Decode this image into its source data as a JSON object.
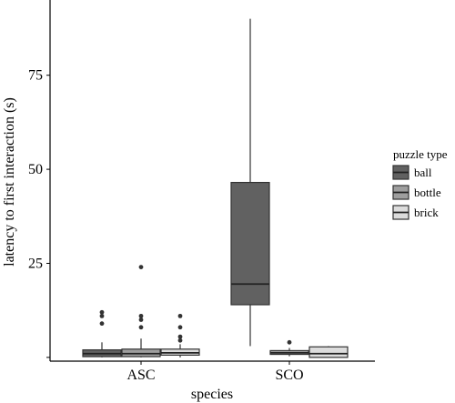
{
  "chart_data": {
    "type": "box",
    "xlabel": "species",
    "ylabel": "latency to first interaction (s)",
    "categories": [
      "ASC",
      "SCO"
    ],
    "ylim": [
      -1,
      95
    ],
    "yticks": [
      25,
      50,
      75
    ],
    "grid": false,
    "legend": {
      "title": "puzzle type",
      "placement": "right"
    },
    "series": [
      {
        "name": "ball",
        "color": "#616161",
        "boxes": [
          {
            "category": "ASC",
            "whisker_low": 0,
            "q1": 0.2,
            "median": 1.0,
            "q3": 2.0,
            "whisker_high": 4,
            "outliers": [
              9,
              11,
              12
            ]
          },
          {
            "category": "SCO",
            "whisker_low": 3,
            "q1": 14,
            "median": 19.5,
            "q3": 46.5,
            "whisker_high": 90,
            "outliers": []
          }
        ]
      },
      {
        "name": "bottle",
        "color": "#9e9e9e",
        "boxes": [
          {
            "category": "ASC",
            "whisker_low": 0,
            "q1": 0.2,
            "median": 1.0,
            "q3": 2.2,
            "whisker_high": 5,
            "outliers": [
              8,
              10,
              11,
              24
            ]
          },
          {
            "category": "SCO",
            "whisker_low": 0.3,
            "q1": 0.8,
            "median": 1.2,
            "q3": 1.8,
            "whisker_high": 2.5,
            "outliers": [
              4
            ]
          }
        ]
      },
      {
        "name": "brick",
        "color": "#dcdcdc",
        "boxes": [
          {
            "category": "ASC",
            "whisker_low": 0,
            "q1": 0.6,
            "median": 1.2,
            "q3": 2.2,
            "whisker_high": 3.5,
            "outliers": [
              4.5,
              5.5,
              8,
              11
            ]
          },
          {
            "category": "SCO",
            "whisker_low": 0,
            "q1": 0,
            "median": 1.0,
            "q3": 2.8,
            "whisker_high": 3,
            "outliers": []
          }
        ]
      }
    ]
  }
}
